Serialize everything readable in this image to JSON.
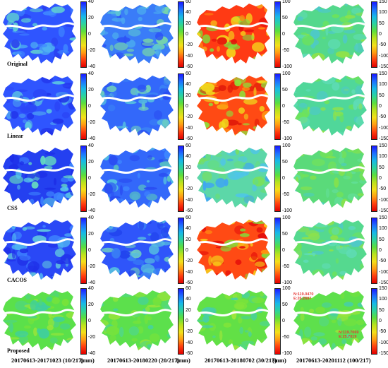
{
  "row_labels": [
    "Original",
    "Linear",
    "CSS",
    "CACOS",
    "Proposed"
  ],
  "columns": [
    {
      "caption": "20170613-20171023 (10/217)",
      "unit": "(mm)",
      "ticks": [
        "40",
        "20",
        "0",
        "-20",
        "-40"
      ]
    },
    {
      "caption": "20170613-20180220 (20/217)",
      "unit": "(mm)",
      "ticks": [
        "60",
        "40",
        "20",
        "0",
        "-20",
        "-40",
        "-60"
      ]
    },
    {
      "caption": "20170613-20180702 (30/217)",
      "unit": "(mm)",
      "ticks": [
        "100",
        "50",
        "0",
        "-50",
        "-100"
      ]
    },
    {
      "caption": "20170613-20201112 (100/217)",
      "unit": "",
      "ticks": [
        "150",
        "100",
        "50",
        "0",
        "-50",
        "-100",
        "-150"
      ]
    }
  ],
  "colormap": [
    "#1a1aff",
    "#1f6fff",
    "#18b8e8",
    "#2bd3a0",
    "#5ade3e",
    "#b9e21e",
    "#f3e01a",
    "#ff9c12",
    "#ff3d0f",
    "#e00000"
  ],
  "annotations": {
    "point_a": [
      "N:119.0470",
      "E:26.2697"
    ],
    "point_b": [
      "N:119.7069",
      "E:25.7019"
    ]
  },
  "panel_palettes": [
    [
      "#2f55ff",
      "#3f86ff",
      "#4fb3f2",
      "#2a3fef",
      "#61d4d0"
    ],
    [
      "#3a7cf8",
      "#4aa7f0",
      "#5bc6d6",
      "#2d52f6",
      "#79d8a8"
    ],
    [
      "#ff3a14",
      "#ff8a10",
      "#f6d41b",
      "#7fe03a",
      "#e40d0a"
    ],
    [
      "#54d88c",
      "#5fdcb6",
      "#6ee35a",
      "#4ec9c8",
      "#8fe24a"
    ],
    [
      "#2f55ff",
      "#2b46f7",
      "#4b9cf4",
      "#1f2fe8",
      "#5bc6e2"
    ],
    [
      "#3368fa",
      "#3b84f5",
      "#55bde0",
      "#2a4ef2",
      "#73d4b8"
    ],
    [
      "#ff4a14",
      "#ff9a10",
      "#f0d81c",
      "#8ee03a",
      "#e11a0a"
    ],
    [
      "#50d79a",
      "#5fdcb6",
      "#6ee35a",
      "#4ec9c8",
      "#8fe24a"
    ],
    [
      "#2440f0",
      "#3f8aff",
      "#58c8e8",
      "#1c2ce6",
      "#66dcc0"
    ],
    [
      "#3368fa",
      "#3f8aff",
      "#55c4e0",
      "#2a4ef2",
      "#5fd2b8"
    ],
    [
      "#5cd7a8",
      "#4fc6e6",
      "#66dd80",
      "#3fa7f0",
      "#7ae05a"
    ],
    [
      "#5ada7a",
      "#62df98",
      "#72e25a",
      "#4ecfb8",
      "#88e24a"
    ],
    [
      "#2a48f6",
      "#3f86ff",
      "#4fb3f2",
      "#1f2fe8",
      "#61c8e0"
    ],
    [
      "#2f55fa",
      "#3b84f5",
      "#55bde0",
      "#2244ee",
      "#70d0c0"
    ],
    [
      "#ff4a14",
      "#ff9a10",
      "#f6d41b",
      "#7fe03a",
      "#e40d0a"
    ],
    [
      "#55d98f",
      "#5fdcb6",
      "#6ee35a",
      "#4ec9c8",
      "#8fe24a"
    ],
    [
      "#5be04a",
      "#4fd67e",
      "#7ae33a",
      "#3fcf9e",
      "#9ae53a"
    ],
    [
      "#5ce04c",
      "#52d884",
      "#76e23c",
      "#44d2a0",
      "#96e43c"
    ],
    [
      "#62e046",
      "#50d78a",
      "#7de33a",
      "#46cfa8",
      "#a0e53a"
    ],
    [
      "#5ee04c",
      "#54d88a",
      "#78e23c",
      "#48d0a4",
      "#98e43c"
    ]
  ]
}
